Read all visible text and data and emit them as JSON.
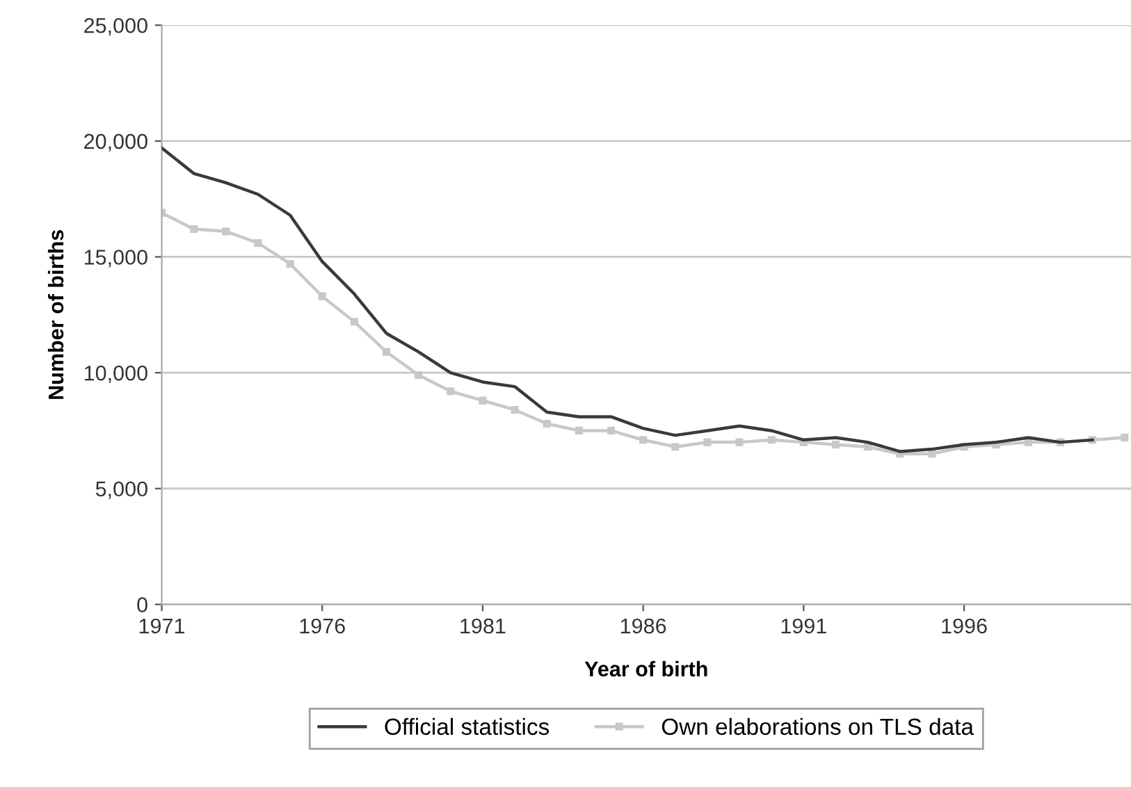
{
  "chart_data": {
    "type": "line",
    "xlabel": "Year of birth",
    "ylabel": "Number of births",
    "x": [
      1971,
      1972,
      1973,
      1974,
      1975,
      1976,
      1977,
      1978,
      1979,
      1980,
      1981,
      1982,
      1983,
      1984,
      1985,
      1986,
      1987,
      1988,
      1989,
      1990,
      1991,
      1992,
      1993,
      1994,
      1995,
      1996,
      1997,
      1998,
      1999,
      2000
    ],
    "series": [
      {
        "name": "Official statistics",
        "color": "#3a3a3a",
        "marker": "none",
        "values": [
          19700,
          18600,
          18200,
          17700,
          16800,
          14800,
          13400,
          11700,
          10900,
          10000,
          9600,
          9400,
          8300,
          8100,
          8100,
          7600,
          7300,
          7500,
          7700,
          7500,
          7100,
          7200,
          7000,
          6600,
          6700,
          6900,
          7000,
          7200,
          7000,
          7100
        ]
      },
      {
        "name": "Own elaborations on TLS data",
        "color": "#c8c8c8",
        "marker": "square",
        "x": [
          1971,
          1972,
          1973,
          1974,
          1975,
          1976,
          1977,
          1978,
          1979,
          1980,
          1981,
          1982,
          1983,
          1984,
          1985,
          1986,
          1987,
          1988,
          1989,
          1990,
          1991,
          1992,
          1993,
          1994,
          1995,
          1996,
          1997,
          1998,
          1999,
          2000,
          2001
        ],
        "values": [
          16900,
          16200,
          16100,
          15600,
          14700,
          13300,
          12200,
          10900,
          9900,
          9200,
          8800,
          8400,
          7800,
          7500,
          7500,
          7100,
          6800,
          7000,
          7000,
          7100,
          7000,
          6900,
          6800,
          6500,
          6500,
          6800,
          6900,
          7000,
          7000,
          7100,
          7200
        ]
      }
    ],
    "xlim": [
      1971,
      2001.2
    ],
    "xticks": [
      1971,
      1976,
      1981,
      1986,
      1991,
      1996
    ],
    "ylim": [
      0,
      25000
    ],
    "yticks": [
      {
        "value": 0,
        "label": "0"
      },
      {
        "value": 5000,
        "label": "5,000"
      },
      {
        "value": 10000,
        "label": "10,000"
      },
      {
        "value": 15000,
        "label": "15,000"
      },
      {
        "value": 20000,
        "label": "20,000"
      },
      {
        "value": 25000,
        "label": "25,000"
      }
    ],
    "grid": "y",
    "legend": "bottom",
    "line_style": "solid"
  }
}
